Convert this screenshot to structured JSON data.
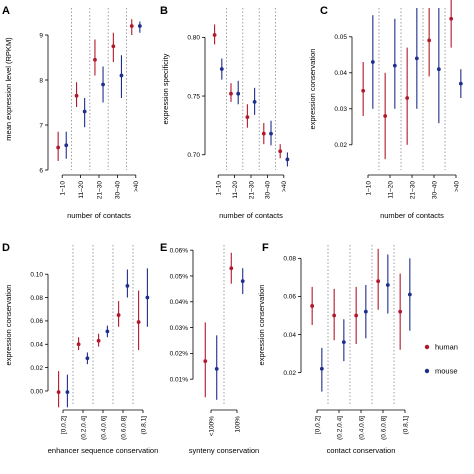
{
  "colors": {
    "human": "#b2182b",
    "mouse": "#1f2f8c"
  },
  "legend": {
    "human_label": "human",
    "mouse_label": "mouse"
  },
  "chart_data": [
    {
      "letter": "A",
      "type": "scatter",
      "xlabel": "number of contacts",
      "ylabel": "mean expression level (RPKM)",
      "categories": [
        "1–10",
        "11–20",
        "21–30",
        "30–40",
        ">40"
      ],
      "ylim": [
        6,
        9.6
      ],
      "yticks": [
        6,
        7,
        8,
        9
      ],
      "ytick_labels": [
        "6",
        "7",
        "8",
        "9"
      ],
      "series": [
        {
          "key": "human",
          "values": [
            6.5,
            7.65,
            8.45,
            8.75,
            9.2
          ],
          "lower": [
            6.2,
            7.4,
            8.1,
            8.4,
            9.0
          ],
          "upper": [
            6.85,
            7.95,
            8.9,
            9.05,
            9.35
          ]
        },
        {
          "key": "mouse",
          "values": [
            6.55,
            7.3,
            7.9,
            8.1,
            9.2
          ],
          "lower": [
            6.25,
            6.95,
            7.5,
            7.6,
            9.05
          ],
          "upper": [
            6.85,
            7.6,
            8.3,
            8.55,
            9.3
          ]
        }
      ]
    },
    {
      "letter": "B",
      "type": "scatter",
      "xlabel": "number of contacts",
      "ylabel": "expression specificity",
      "categories": [
        "1–10",
        "11–20",
        "21–30",
        "30–40",
        ">40"
      ],
      "ylim": [
        0.687,
        0.825
      ],
      "yticks": [
        0.7,
        0.75,
        0.8
      ],
      "ytick_labels": [
        "0.70",
        "0.75",
        "0.80"
      ],
      "series": [
        {
          "key": "human",
          "values": [
            0.802,
            0.752,
            0.732,
            0.718,
            0.703
          ],
          "lower": [
            0.794,
            0.745,
            0.723,
            0.709,
            0.697
          ],
          "upper": [
            0.811,
            0.761,
            0.743,
            0.727,
            0.709
          ]
        },
        {
          "key": "mouse",
          "values": [
            0.773,
            0.752,
            0.745,
            0.718,
            0.696
          ],
          "lower": [
            0.764,
            0.743,
            0.734,
            0.708,
            0.69
          ],
          "upper": [
            0.782,
            0.763,
            0.757,
            0.729,
            0.702
          ]
        }
      ]
    },
    {
      "letter": "C",
      "type": "scatter",
      "xlabel": "number of contacts",
      "ylabel": "expression conservation",
      "categories": [
        "1–10",
        "11–20",
        "21–30",
        "30–40",
        ">40"
      ],
      "ylim": [
        0.013,
        0.058
      ],
      "yticks": [
        0.02,
        0.03,
        0.04,
        0.05
      ],
      "ytick_labels": [
        "0.02",
        "0.03",
        "0.04",
        "0.05"
      ],
      "series": [
        {
          "key": "human",
          "values": [
            0.035,
            0.028,
            0.033,
            0.049,
            0.055
          ],
          "lower": [
            0.028,
            0.016,
            0.02,
            0.039,
            0.047
          ],
          "upper": [
            0.043,
            0.04,
            0.047,
            0.058,
            0.062
          ]
        },
        {
          "key": "mouse",
          "values": [
            0.043,
            0.042,
            0.044,
            0.041,
            0.037
          ],
          "lower": [
            0.03,
            0.03,
            0.03,
            0.026,
            0.033
          ],
          "upper": [
            0.056,
            0.055,
            0.058,
            0.058,
            0.041
          ]
        }
      ]
    },
    {
      "letter": "D",
      "type": "scatter",
      "xlabel": "enhancer sequence conservation",
      "ylabel": "expression conservation",
      "categories": [
        "[0,0.2]",
        "(0.2,0.4]",
        "(0.4,0.6]",
        "(0.6,0.8]",
        "(0.8,1]"
      ],
      "ylim": [
        -0.012,
        0.125
      ],
      "yticks": [
        0,
        0.02,
        0.04,
        0.06,
        0.08,
        0.1
      ],
      "ytick_labels": [
        "0.00",
        "0.02",
        "0.04",
        "0.06",
        "0.08",
        "0.10"
      ],
      "series": [
        {
          "key": "human",
          "values": [
            -0.001,
            0.04,
            0.043,
            0.065,
            0.059
          ],
          "lower": [
            -0.014,
            0.035,
            0.038,
            0.055,
            0.035
          ],
          "upper": [
            0.017,
            0.046,
            0.049,
            0.077,
            0.086
          ]
        },
        {
          "key": "mouse",
          "values": [
            -0.001,
            0.028,
            0.051,
            0.09,
            0.08
          ],
          "lower": [
            -0.014,
            0.023,
            0.046,
            0.08,
            0.055
          ],
          "upper": [
            0.014,
            0.033,
            0.056,
            0.104,
            0.105
          ]
        }
      ]
    },
    {
      "letter": "E",
      "type": "scatter",
      "xlabel": "synteny conservation",
      "ylabel": "",
      "categories": [
        "<100%",
        "100%"
      ],
      "ylim": [
        0,
        0.062
      ],
      "yticks": [
        0.01,
        0.02,
        0.03,
        0.04,
        0.05,
        0.06
      ],
      "ytick_labels": [
        "0.01%",
        "0.02%",
        "0.03%",
        "0.04%",
        "0.05%",
        "0.06%"
      ],
      "series": [
        {
          "key": "human",
          "values": [
            0.017,
            0.053
          ],
          "lower": [
            0.003,
            0.047
          ],
          "upper": [
            0.032,
            0.059
          ]
        },
        {
          "key": "mouse",
          "values": [
            0.014,
            0.048
          ],
          "lower": [
            0.002,
            0.043
          ],
          "upper": [
            0.027,
            0.053
          ]
        }
      ]
    },
    {
      "letter": "F",
      "type": "scatter",
      "xlabel": "contact conservation",
      "ylabel": "expression conservation",
      "categories": [
        "[0,0.2]",
        "(0.2,0.4]",
        "(0.4,0.6]",
        "(0.6,0.8]",
        "(0.8,1]"
      ],
      "ylim": [
        0.003,
        0.087
      ],
      "yticks": [
        0.02,
        0.04,
        0.06,
        0.08
      ],
      "ytick_labels": [
        "0.02",
        "0.04",
        "0.06",
        "0.08"
      ],
      "series": [
        {
          "key": "human",
          "values": [
            0.055,
            0.05,
            0.05,
            0.068,
            0.052
          ],
          "lower": [
            0.045,
            0.037,
            0.035,
            0.053,
            0.032
          ],
          "upper": [
            0.065,
            0.064,
            0.065,
            0.085,
            0.072
          ]
        },
        {
          "key": "mouse",
          "values": [
            0.022,
            0.036,
            0.052,
            0.066,
            0.061
          ],
          "lower": [
            0.01,
            0.026,
            0.038,
            0.051,
            0.042
          ],
          "upper": [
            0.033,
            0.048,
            0.066,
            0.082,
            0.08
          ]
        }
      ]
    }
  ]
}
